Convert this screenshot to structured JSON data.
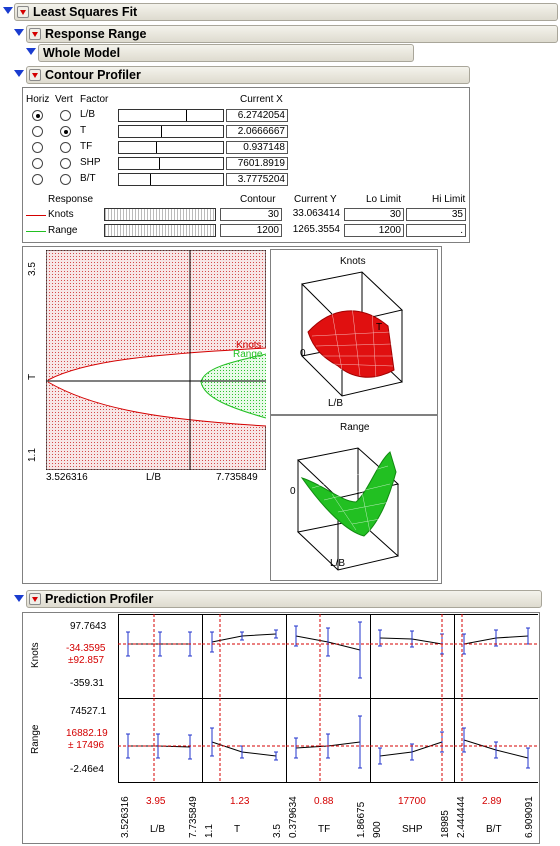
{
  "headers": {
    "least_squares_fit": "Least Squares Fit",
    "response_range": "Response Range",
    "whole_model": "Whole Model",
    "contour_profiler": "Contour Profiler",
    "prediction_profiler": "Prediction Profiler"
  },
  "factor_table": {
    "col_horiz": "Horiz",
    "col_vert": "Vert",
    "col_factor": "Factor",
    "col_current_x": "Current X",
    "rows": [
      {
        "name": "L/B",
        "value": "6.2742054",
        "horiz": true,
        "vert": false,
        "slider": 0.64
      },
      {
        "name": "T",
        "value": "2.0666667",
        "horiz": false,
        "vert": true,
        "slider": 0.4
      },
      {
        "name": "TF",
        "value": "0.937148",
        "horiz": false,
        "vert": false,
        "slider": 0.36
      },
      {
        "name": "SHP",
        "value": "7601.8919",
        "horiz": false,
        "vert": false,
        "slider": 0.38
      },
      {
        "name": "B/T",
        "value": "3.7775204",
        "horiz": false,
        "vert": false,
        "slider": 0.3
      }
    ]
  },
  "response_table": {
    "col_response": "Response",
    "col_contour": "Contour",
    "col_current_y": "Current Y",
    "col_lo": "Lo Limit",
    "col_hi": "Hi Limit",
    "rows": [
      {
        "name": "Knots",
        "contour": "30",
        "current_y": "33.063414",
        "lo": "30",
        "hi": "35",
        "color": "#d40000"
      },
      {
        "name": "Range",
        "contour": "1200",
        "current_y": "1265.3554",
        "lo": "1200",
        "hi": ".",
        "color": "#22c022"
      }
    ]
  },
  "contour_plot": {
    "y_top": "3.5",
    "y_bottom": "1.1",
    "y_label": "T",
    "x_left": "3.526316",
    "x_right": "7.735849",
    "x_label": "L/B",
    "label_knots": "Knots",
    "label_range": "Range"
  },
  "surface_plots": {
    "knots_title": "Knots",
    "knots_zero": "0",
    "knots_xlabel": "L/B",
    "knots_t": "T",
    "range_title": "Range",
    "range_zero": "0",
    "range_xlabel": "L/B"
  },
  "prediction_profiler": {
    "rows": [
      {
        "label": "Knots",
        "top": "97.7643",
        "mid1": "-34.3595",
        "mid2": "±92.857",
        "bottom": "-359.31"
      },
      {
        "label": "Range",
        "top": "74527.1",
        "mid1": "16882.19",
        "mid2": "± 17496",
        "bottom": "-2.46e4"
      }
    ],
    "factors": [
      {
        "name": "L/B",
        "min": "3.526316",
        "current": "3.95",
        "max": "7.735849"
      },
      {
        "name": "T",
        "min": "1.1",
        "current": "1.23",
        "max": "3.5"
      },
      {
        "name": "TF",
        "min": "0.379634",
        "current": "0.88",
        "max": "1.86675"
      },
      {
        "name": "SHP",
        "min": "900",
        "current": "17700",
        "max": "18985"
      },
      {
        "name": "B/T",
        "min": "2.444444",
        "current": "2.89",
        "max": "6.909091"
      }
    ]
  },
  "colors": {
    "knots": "#d40000",
    "range": "#22c022",
    "disclosure": "#1a3ccf"
  }
}
